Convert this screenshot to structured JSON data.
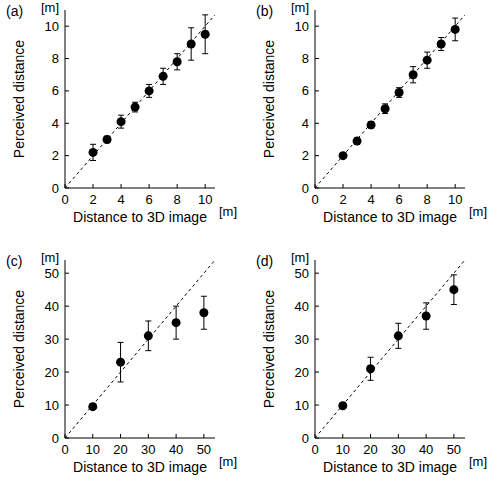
{
  "chart_data": [
    {
      "type": "scatter",
      "title": "(a)",
      "xlabel": "Distance to 3D image",
      "ylabel": "Perceived distance",
      "x_unit_label": "[m]",
      "y_unit_label": "[m]",
      "x": [
        2,
        3,
        4,
        5,
        6,
        7,
        8,
        9,
        10
      ],
      "values": [
        2.2,
        3.0,
        4.1,
        5.0,
        6.0,
        6.9,
        7.8,
        8.9,
        9.5
      ],
      "errors": [
        0.5,
        0.2,
        0.4,
        0.3,
        0.4,
        0.5,
        0.5,
        1.0,
        1.2
      ],
      "color": "#000000",
      "marker": "circle",
      "xlim": [
        0,
        10.7
      ],
      "ylim": [
        0,
        11
      ],
      "xticks": [
        0,
        2,
        4,
        6,
        8,
        10
      ],
      "yticks": [
        0,
        2,
        4,
        6,
        8,
        10
      ]
    },
    {
      "type": "scatter",
      "title": "(b)",
      "xlabel": "Distance to 3D image",
      "ylabel": "Perceived distance",
      "x_unit_label": "[m]",
      "y_unit_label": "[m]",
      "x": [
        2,
        3,
        4,
        5,
        6,
        7,
        8,
        9,
        10
      ],
      "values": [
        2.0,
        2.9,
        3.9,
        4.9,
        5.9,
        7.0,
        7.9,
        8.9,
        9.8
      ],
      "errors": [
        0.15,
        0.2,
        0.2,
        0.3,
        0.3,
        0.5,
        0.5,
        0.4,
        0.7
      ],
      "color": "#000000",
      "marker": "circle",
      "xlim": [
        0,
        10.7
      ],
      "ylim": [
        0,
        11
      ],
      "xticks": [
        0,
        2,
        4,
        6,
        8,
        10
      ],
      "yticks": [
        0,
        2,
        4,
        6,
        8,
        10
      ]
    },
    {
      "type": "scatter",
      "title": "(c)",
      "xlabel": "Distance to 3D image",
      "ylabel": "Perceived distance",
      "x_unit_label": "[m]",
      "y_unit_label": "[m]",
      "x": [
        10,
        20,
        30,
        40,
        50
      ],
      "values": [
        9.5,
        23,
        31,
        35,
        38
      ],
      "errors": [
        0.8,
        6,
        4.5,
        5,
        5
      ],
      "color": "#000000",
      "marker": "circle",
      "xlim": [
        0,
        54
      ],
      "ylim": [
        0,
        54
      ],
      "xticks": [
        0,
        10,
        20,
        30,
        40,
        50
      ],
      "yticks": [
        0,
        10,
        20,
        30,
        40,
        50
      ]
    },
    {
      "type": "scatter",
      "title": "(d)",
      "xlabel": "Distance to 3D image",
      "ylabel": "Perceived distance",
      "x_unit_label": "[m]",
      "y_unit_label": "[m]",
      "x": [
        10,
        20,
        30,
        40,
        50
      ],
      "values": [
        9.8,
        21,
        31,
        37,
        45
      ],
      "errors": [
        0.8,
        3.5,
        3.8,
        4,
        4.5
      ],
      "color": "#000000",
      "marker": "circle",
      "xlim": [
        0,
        54
      ],
      "ylim": [
        0,
        54
      ],
      "xticks": [
        0,
        10,
        20,
        30,
        40,
        50
      ],
      "yticks": [
        0,
        10,
        20,
        30,
        40,
        50
      ]
    }
  ]
}
